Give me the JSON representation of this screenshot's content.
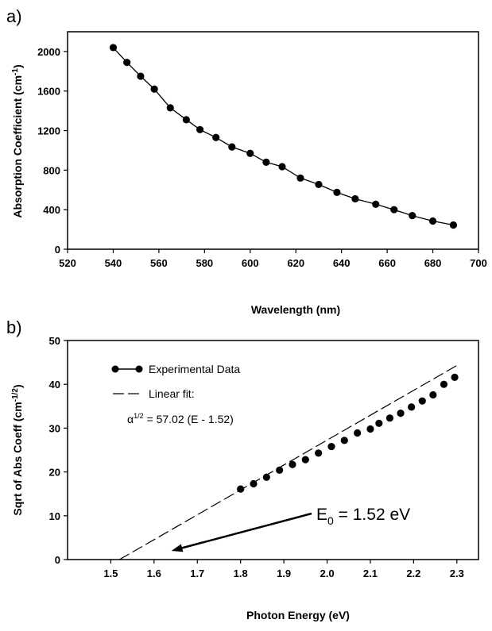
{
  "chart_data": [
    {
      "panel_label": "a)",
      "type": "line",
      "xlabel": "Wavelength (nm)",
      "ylabel_main": "Absorption Coefficient (cm",
      "ylabel_sup": "-1",
      "ylabel_end": ")",
      "xlim": [
        520,
        700
      ],
      "ylim": [
        0,
        2200
      ],
      "xticks": [
        "520",
        "540",
        "560",
        "580",
        "600",
        "620",
        "640",
        "660",
        "680",
        "700"
      ],
      "yticks": [
        "0",
        "400",
        "800",
        "1200",
        "1600",
        "2000"
      ],
      "series": [
        {
          "markers": "filled-circle",
          "x": [
            540,
            546,
            552,
            558,
            565,
            572,
            578,
            585,
            592,
            600,
            607,
            614,
            622,
            630,
            638,
            646,
            655,
            663,
            671,
            680,
            689
          ],
          "y": [
            2040,
            1890,
            1750,
            1620,
            1430,
            1310,
            1210,
            1130,
            1035,
            970,
            880,
            835,
            720,
            655,
            575,
            510,
            455,
            400,
            340,
            285,
            245
          ]
        }
      ]
    },
    {
      "panel_label": "b)",
      "type": "scatter",
      "xlabel": "Photon Energy (eV)",
      "ylabel_main": "Sqrt of Abs Coeff (cm",
      "ylabel_sup": "-1/2",
      "ylabel_end": ")",
      "xlim": [
        1.4,
        2.35
      ],
      "ylim": [
        0,
        50
      ],
      "xticks": [
        "1.5",
        "1.6",
        "1.7",
        "1.8",
        "1.9",
        "2.0",
        "2.1",
        "2.2",
        "2.3"
      ],
      "yticks": [
        "0",
        "10",
        "20",
        "30",
        "40",
        "50"
      ],
      "legend": {
        "data_label": "Experimental Data",
        "fit_label": "Linear fit:",
        "equation_alpha": "α",
        "equation_sup": "1/2",
        "equation_rest": " = 57.02 (E - 1.52)"
      },
      "fit": {
        "slope": 57.02,
        "intercept_x": 1.52,
        "x_end": 2.3
      },
      "series": [
        {
          "name": "Experimental Data",
          "markers": "filled-circle",
          "x": [
            1.8,
            1.83,
            1.86,
            1.89,
            1.92,
            1.95,
            1.98,
            2.01,
            2.04,
            2.07,
            2.1,
            2.12,
            2.145,
            2.17,
            2.195,
            2.22,
            2.245,
            2.27,
            2.295
          ],
          "y": [
            16.1,
            17.3,
            18.8,
            20.4,
            21.7,
            22.8,
            24.3,
            25.8,
            27.2,
            28.9,
            29.8,
            31.1,
            32.3,
            33.4,
            34.8,
            36.2,
            37.6,
            40.0,
            41.6
          ]
        }
      ],
      "annotation": {
        "text_main": "E",
        "text_sub": "0",
        "text_rest": " = 1.52 eV",
        "arrow_to": [
          1.64,
          2.0
        ]
      }
    }
  ]
}
